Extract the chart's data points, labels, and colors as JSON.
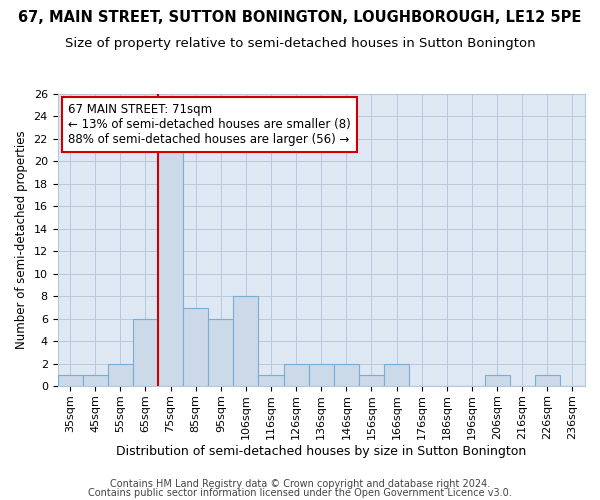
{
  "title1": "67, MAIN STREET, SUTTON BONINGTON, LOUGHBOROUGH, LE12 5PE",
  "title2": "Size of property relative to semi-detached houses in Sutton Bonington",
  "xlabel": "Distribution of semi-detached houses by size in Sutton Bonington",
  "ylabel": "Number of semi-detached properties",
  "footnote1": "Contains HM Land Registry data © Crown copyright and database right 2024.",
  "footnote2": "Contains public sector information licensed under the Open Government Licence v3.0.",
  "categories": [
    "35sqm",
    "45sqm",
    "55sqm",
    "65sqm",
    "75sqm",
    "85sqm",
    "95sqm",
    "106sqm",
    "116sqm",
    "126sqm",
    "136sqm",
    "146sqm",
    "156sqm",
    "166sqm",
    "176sqm",
    "186sqm",
    "196sqm",
    "206sqm",
    "216sqm",
    "226sqm",
    "236sqm"
  ],
  "values": [
    1,
    1,
    2,
    6,
    21,
    7,
    6,
    8,
    1,
    2,
    2,
    2,
    1,
    2,
    0,
    0,
    0,
    1,
    0,
    1,
    0
  ],
  "bar_color": "#ccd9e8",
  "bar_edge_color": "#7aadd4",
  "bar_linewidth": 0.8,
  "grid_color": "#b8c8dc",
  "background_color": "#dde8f2",
  "vline_x_index": 3.5,
  "vline_color": "#cc0000",
  "vline_linewidth": 1.5,
  "annotation_text": "67 MAIN STREET: 71sqm\n← 13% of semi-detached houses are smaller (8)\n88% of semi-detached houses are larger (56) →",
  "annotation_box_color": "#ffffff",
  "annotation_border_color": "#cc0000",
  "ylim": [
    0,
    26
  ],
  "yticks": [
    0,
    2,
    4,
    6,
    8,
    10,
    12,
    14,
    16,
    18,
    20,
    22,
    24,
    26
  ],
  "title1_fontsize": 10.5,
  "title2_fontsize": 9.5,
  "xlabel_fontsize": 9,
  "ylabel_fontsize": 8.5,
  "tick_fontsize": 8,
  "annotation_fontsize": 8.5,
  "footnote_fontsize": 7
}
